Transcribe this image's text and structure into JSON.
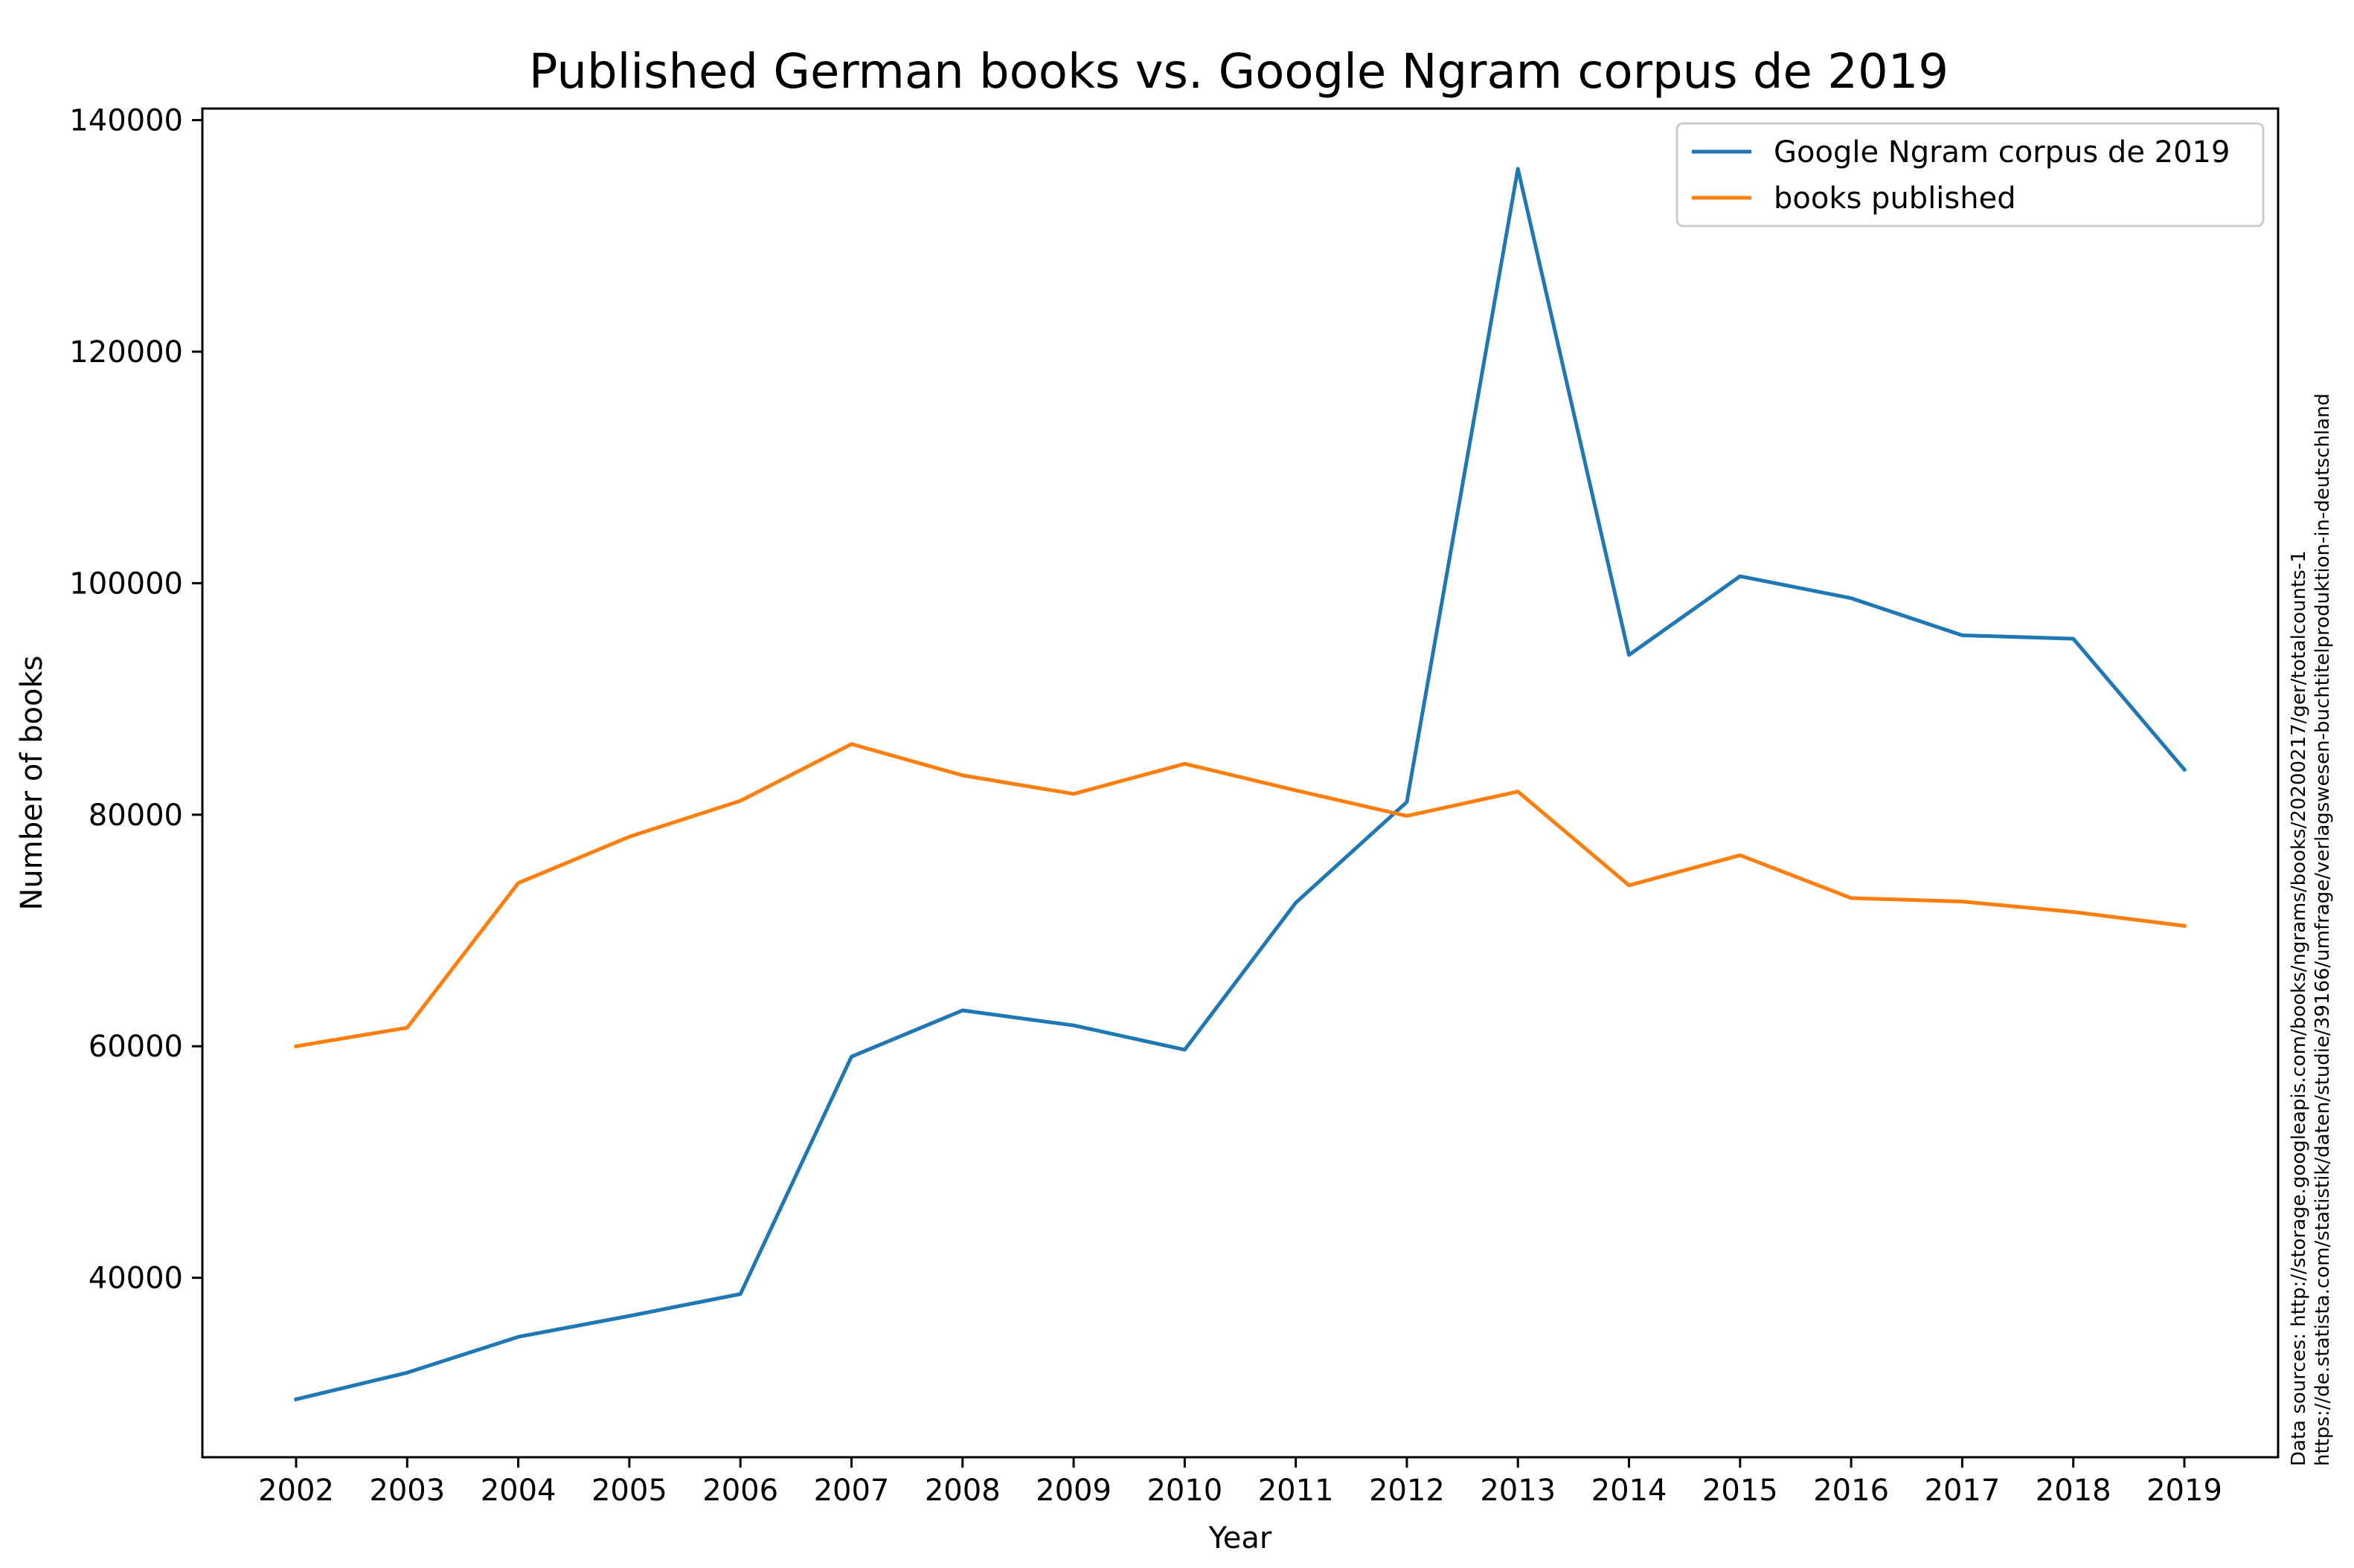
{
  "chart_data": {
    "type": "line",
    "title": "Published German books vs. Google Ngram corpus de 2019",
    "xlabel": "Year",
    "ylabel": "Number of books",
    "x": [
      2002,
      2003,
      2004,
      2005,
      2006,
      2007,
      2008,
      2009,
      2010,
      2011,
      2012,
      2013,
      2014,
      2015,
      2016,
      2017,
      2018,
      2019
    ],
    "series": [
      {
        "name": "Google Ngram corpus de 2019",
        "color": "#1f77b4",
        "values": [
          29500,
          31800,
          34900,
          36700,
          38600,
          59100,
          63100,
          61800,
          59700,
          72400,
          81100,
          135800,
          93800,
          100600,
          98700,
          95500,
          95200,
          83900
        ]
      },
      {
        "name": "books published",
        "color": "#ff7f0e",
        "values": [
          60000,
          61600,
          74100,
          78100,
          81200,
          86100,
          83400,
          81800,
          84400,
          82100,
          79900,
          82000,
          73900,
          76500,
          72800,
          72500,
          71600,
          70400
        ]
      }
    ],
    "ylim": [
      24500,
      141000
    ],
    "yticks": [
      40000,
      60000,
      80000,
      100000,
      120000,
      140000
    ],
    "grid": false,
    "legend_position": "top-right",
    "source_lines": [
      "Data sources: http://storage.googleapis.com/books/ngrams/books/20200217/ger/totalcounts-1",
      "https://de.statista.com/statistik/daten/studie/39166/umfrage/verlagswesen-buchtitelproduktion-in-deutschland"
    ]
  }
}
